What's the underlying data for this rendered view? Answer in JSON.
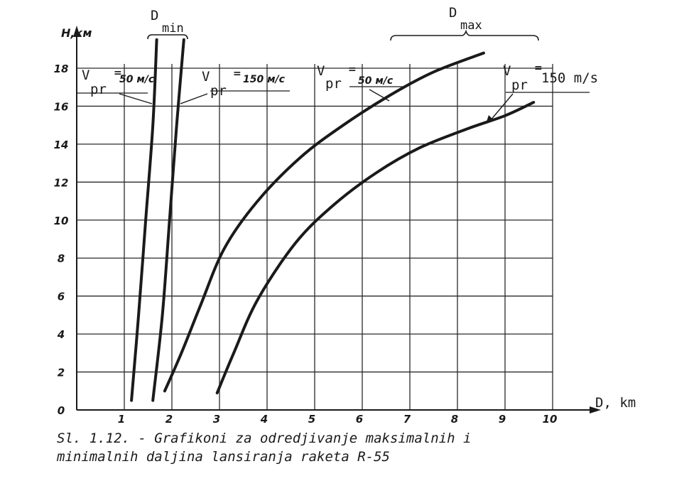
{
  "chart_data": {
    "type": "line",
    "xlabel": "D, km",
    "ylabel": "H,км",
    "xlim": [
      0,
      10
    ],
    "ylim": [
      0,
      18
    ],
    "x_ticks": [
      "1",
      "2",
      "3",
      "4",
      "5",
      "6",
      "7",
      "8",
      "9",
      "10"
    ],
    "y_ticks": [
      "0",
      "2",
      "4",
      "6",
      "8",
      "10",
      "12",
      "14",
      "16",
      "18"
    ],
    "grid": true,
    "series": [
      {
        "group": "Dmin",
        "label": "Vpr = 50 m/c",
        "x": [
          1.15,
          1.3,
          1.45,
          1.6,
          1.68
        ],
        "y": [
          0.5,
          5,
          10,
          15,
          19.5
        ]
      },
      {
        "group": "Dmin",
        "label": "Vpr = 150 m/c",
        "x": [
          1.6,
          1.8,
          1.95,
          2.1,
          2.25
        ],
        "y": [
          0.5,
          5,
          10,
          15,
          19.5
        ]
      },
      {
        "group": "Dmax",
        "label": "Vpr = 50 m/c",
        "x": [
          1.85,
          2.2,
          2.6,
          3.1,
          3.8,
          4.7,
          5.6,
          6.6,
          7.5,
          8.55
        ],
        "y": [
          1.0,
          3.0,
          5.5,
          8.5,
          11,
          13.3,
          15,
          16.6,
          17.8,
          18.8
        ]
      },
      {
        "group": "Dmax",
        "label": "Vpr = 150 m/s",
        "x": [
          2.95,
          3.3,
          3.8,
          4.6,
          5.4,
          6.3,
          7.2,
          8.2,
          9.0,
          9.6
        ],
        "y": [
          0.9,
          3.0,
          5.8,
          8.8,
          10.8,
          12.5,
          13.8,
          14.8,
          15.5,
          16.2
        ]
      }
    ]
  },
  "labels": {
    "dmin": {
      "main": "D",
      "sub": "min"
    },
    "dmax": {
      "main": "D",
      "sub": "max"
    },
    "v_main": "V",
    "pr": "pr",
    "speed_50": "50 м/с",
    "speed_150_hand": "150 м/с",
    "speed_150": "150 m/s",
    "eq": "="
  },
  "caption": {
    "line1": "Sl. 1.12. - Grafikoni za odredjivanje maksimalnih i",
    "line2": "minimalnih daljina lansiranja raketa R-55"
  },
  "colors": {
    "ink": "#1a1a1a",
    "grid": "#2a2a2a",
    "background": "#ffffff"
  }
}
